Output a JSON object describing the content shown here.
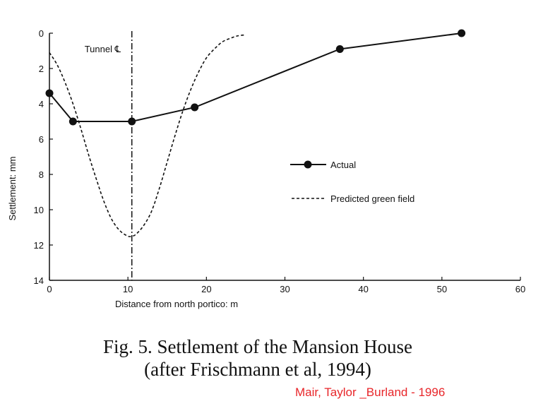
{
  "chart_data": {
    "type": "line",
    "xlabel": "Distance from north portico: m",
    "ylabel": "Settlement: mm",
    "xlim": [
      0,
      60
    ],
    "ylim": [
      0,
      14
    ],
    "y_inverted": true,
    "xticks": [
      "0",
      "10",
      "20",
      "30",
      "40",
      "50",
      "60"
    ],
    "yticks": [
      "0",
      "2",
      "4",
      "6",
      "8",
      "10",
      "12",
      "14"
    ],
    "grid": false,
    "legend_position": "right",
    "annotation": {
      "label": "Tunnel ℄",
      "x": 10.5
    },
    "series": [
      {
        "name": "Actual",
        "style": "solid-with-markers",
        "x": [
          0,
          3,
          10.5,
          18.5,
          37,
          52.5
        ],
        "y": [
          3.4,
          5.0,
          5.0,
          4.2,
          0.9,
          0.0
        ]
      },
      {
        "name": "Predicted green field",
        "style": "dashed",
        "x": [
          0,
          1,
          2,
          3,
          4,
          5,
          6,
          7,
          8,
          9,
          10,
          10.5,
          11,
          12,
          13,
          14,
          15,
          16,
          17,
          18,
          19,
          20,
          21,
          22,
          23,
          24,
          25
        ],
        "y": [
          1.1,
          1.8,
          2.8,
          4.0,
          5.4,
          6.9,
          8.3,
          9.6,
          10.6,
          11.2,
          11.5,
          11.5,
          11.4,
          10.9,
          10.1,
          8.8,
          7.3,
          5.8,
          4.4,
          3.2,
          2.2,
          1.4,
          0.9,
          0.5,
          0.3,
          0.15,
          0.1
        ]
      }
    ]
  },
  "caption": {
    "line1": "Fig. 5. Settlement of the Mansion House",
    "line2": "(after Frischmann et al, 1994)"
  },
  "credit": "Mair, Taylor _Burland - 1996"
}
